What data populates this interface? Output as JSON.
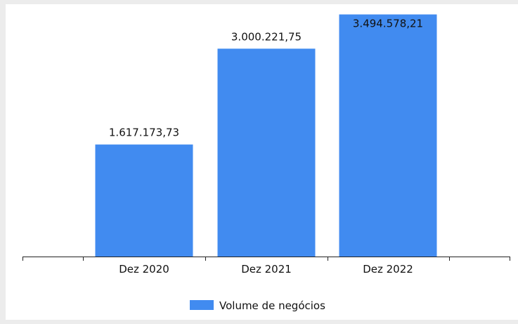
{
  "chart_data": {
    "type": "bar",
    "categories": [
      "Dez 2020",
      "Dez 2021",
      "Dez 2022"
    ],
    "series": [
      {
        "name": "Volume de negócios",
        "values": [
          1617173.73,
          3000221.75,
          3494578.21
        ],
        "labels": [
          "1.617.173,73",
          "3.000.221,75",
          "3.494.578,21"
        ],
        "color": "#418bf0"
      }
    ],
    "title": "",
    "xlabel": "",
    "ylabel": "",
    "ylim": [
      0,
      3500000
    ],
    "grid": false,
    "legend_position": "bottom-center"
  }
}
